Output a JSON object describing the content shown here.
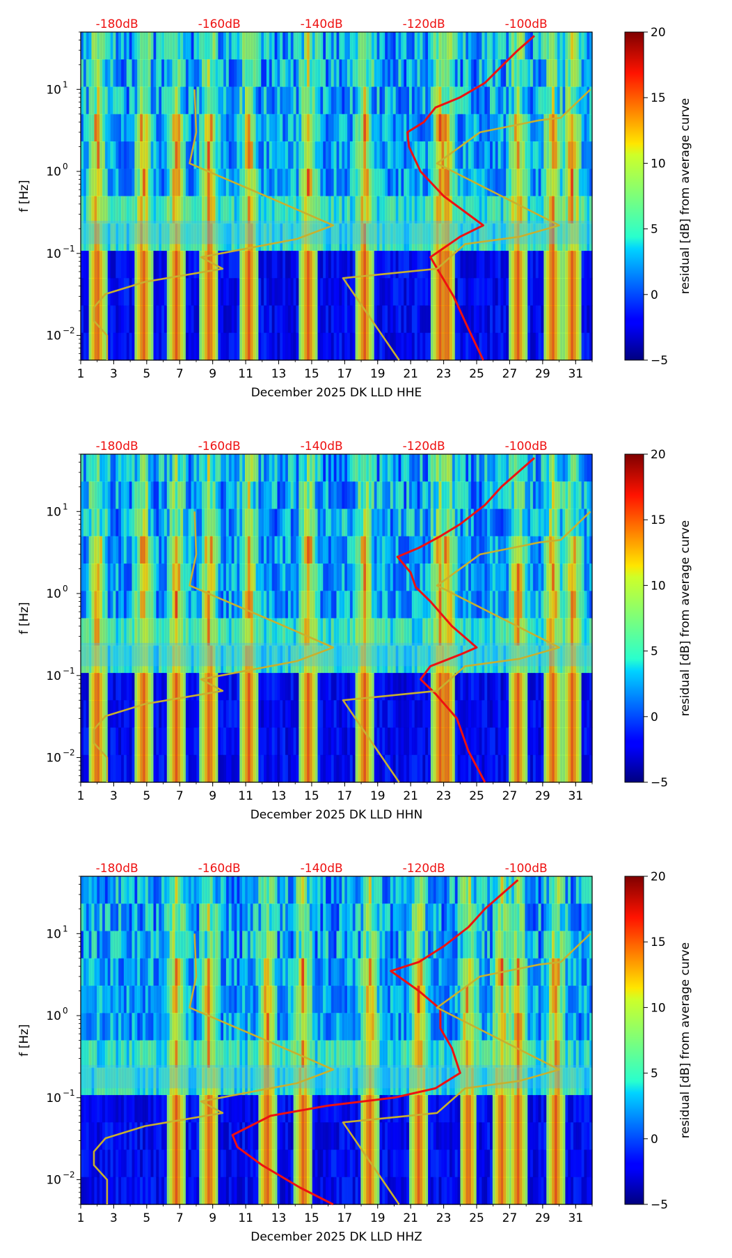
{
  "chart_data": [
    {
      "type": "heatmap",
      "xlabel": "December 2025 DK LLD  HHE",
      "ylabel": "f [Hz]",
      "xlim": [
        1,
        32
      ],
      "ylim": [
        0.005,
        50
      ],
      "yscale": "log",
      "x_ticks": [
        "1",
        "3",
        "5",
        "7",
        "9",
        "11",
        "13",
        "15",
        "17",
        "19",
        "21",
        "23",
        "25",
        "27",
        "29",
        "31"
      ],
      "y_ticks": [
        {
          "value": 0.01,
          "base": "10",
          "exp": "−2"
        },
        {
          "value": 0.1,
          "base": "10",
          "exp": "−1"
        },
        {
          "value": 1,
          "base": "10",
          "exp": "0"
        },
        {
          "value": 10,
          "base": "10",
          "exp": "1"
        }
      ],
      "top_db_labels": [
        "-180dB",
        "-160dB",
        "-140dB",
        "-120dB",
        "-100dB"
      ],
      "colorbar": {
        "label": "residual [dB] from average curve",
        "min": -5,
        "max": 20,
        "ticks": [
          "−5",
          "0",
          "5",
          "10",
          "15",
          "20"
        ]
      },
      "overlays": [
        {
          "name": "red-psd-curve",
          "color": "#ee1111",
          "points": [
            [
              25.4,
              0.005
            ],
            [
              24.5,
              0.012
            ],
            [
              23.6,
              0.03
            ],
            [
              22.2,
              0.09
            ],
            [
              24.0,
              0.16
            ],
            [
              25.4,
              0.22
            ],
            [
              23.0,
              0.5
            ],
            [
              21.6,
              1.0
            ],
            [
              20.9,
              2.0
            ],
            [
              20.8,
              3.0
            ],
            [
              21.8,
              4.0
            ],
            [
              22.5,
              6.0
            ],
            [
              24.0,
              8.0
            ],
            [
              25.5,
              12.0
            ],
            [
              26.6,
              20.0
            ],
            [
              27.5,
              30.0
            ],
            [
              28.5,
              45.0
            ]
          ]
        },
        {
          "name": "gold-noise-model-high",
          "color": "#c8b02e",
          "points": [
            [
              20.3,
              0.005
            ],
            [
              16.9,
              0.05
            ],
            [
              22.6,
              0.065
            ],
            [
              24.3,
              0.13
            ],
            [
              27.6,
              0.16
            ],
            [
              30.0,
              0.22
            ],
            [
              22.6,
              1.25
            ],
            [
              25.2,
              3.0
            ],
            [
              28.8,
              4.2
            ],
            [
              30.1,
              4.5
            ],
            [
              31.9,
              10.0
            ]
          ]
        },
        {
          "name": "gold-noise-model-low",
          "color": "#c8b02e",
          "points": [
            [
              2.6,
              0.005
            ],
            [
              2.6,
              0.01
            ],
            [
              1.8,
              0.015
            ],
            [
              1.8,
              0.022
            ],
            [
              2.5,
              0.032
            ],
            [
              4.9,
              0.045
            ],
            [
              9.6,
              0.065
            ],
            [
              8.3,
              0.09
            ],
            [
              14.1,
              0.15
            ],
            [
              16.3,
              0.22
            ],
            [
              13.1,
              0.42
            ],
            [
              7.6,
              1.25
            ],
            [
              8.0,
              3.0
            ],
            [
              7.9,
              10.0
            ]
          ]
        }
      ]
    },
    {
      "type": "heatmap",
      "xlabel": "December 2025 DK LLD  HHN",
      "ylabel": "f [Hz]",
      "xlim": [
        1,
        32
      ],
      "ylim": [
        0.005,
        50
      ],
      "yscale": "log",
      "x_ticks": [
        "1",
        "3",
        "5",
        "7",
        "9",
        "11",
        "13",
        "15",
        "17",
        "19",
        "21",
        "23",
        "25",
        "27",
        "29",
        "31"
      ],
      "y_ticks": [
        {
          "value": 0.01,
          "base": "10",
          "exp": "−2"
        },
        {
          "value": 0.1,
          "base": "10",
          "exp": "−1"
        },
        {
          "value": 1,
          "base": "10",
          "exp": "0"
        },
        {
          "value": 10,
          "base": "10",
          "exp": "1"
        }
      ],
      "top_db_labels": [
        "-180dB",
        "-160dB",
        "-140dB",
        "-120dB",
        "-100dB"
      ],
      "colorbar": {
        "label": "residual [dB] from average curve",
        "min": -5,
        "max": 20,
        "ticks": [
          "−5",
          "0",
          "5",
          "10",
          "15",
          "20"
        ]
      },
      "overlays": [
        {
          "name": "red-psd-curve",
          "color": "#ee1111",
          "points": [
            [
              25.5,
              0.005
            ],
            [
              24.5,
              0.012
            ],
            [
              23.8,
              0.03
            ],
            [
              22.5,
              0.06
            ],
            [
              21.6,
              0.09
            ],
            [
              22.2,
              0.13
            ],
            [
              24.0,
              0.18
            ],
            [
              25.0,
              0.22
            ],
            [
              23.5,
              0.4
            ],
            [
              22.2,
              0.8
            ],
            [
              21.3,
              1.2
            ],
            [
              21.0,
              1.8
            ],
            [
              20.2,
              2.8
            ],
            [
              21.5,
              3.6
            ],
            [
              22.8,
              5.0
            ],
            [
              24.0,
              7.0
            ],
            [
              25.5,
              12.0
            ],
            [
              26.5,
              20.0
            ],
            [
              27.5,
              30.0
            ],
            [
              28.5,
              45.0
            ]
          ]
        },
        {
          "name": "gold-noise-model-high",
          "color": "#c8b02e",
          "points": [
            [
              20.3,
              0.005
            ],
            [
              16.9,
              0.05
            ],
            [
              22.6,
              0.065
            ],
            [
              24.3,
              0.13
            ],
            [
              27.6,
              0.16
            ],
            [
              30.0,
              0.22
            ],
            [
              22.6,
              1.25
            ],
            [
              25.2,
              3.0
            ],
            [
              28.8,
              4.2
            ],
            [
              30.1,
              4.5
            ],
            [
              31.9,
              10.0
            ]
          ]
        },
        {
          "name": "gold-noise-model-low",
          "color": "#c8b02e",
          "points": [
            [
              2.6,
              0.005
            ],
            [
              2.6,
              0.01
            ],
            [
              1.8,
              0.015
            ],
            [
              1.8,
              0.022
            ],
            [
              2.5,
              0.032
            ],
            [
              4.9,
              0.045
            ],
            [
              9.6,
              0.065
            ],
            [
              8.3,
              0.09
            ],
            [
              14.1,
              0.15
            ],
            [
              16.3,
              0.22
            ],
            [
              13.1,
              0.42
            ],
            [
              7.6,
              1.25
            ],
            [
              8.0,
              3.0
            ],
            [
              7.9,
              10.0
            ]
          ]
        }
      ]
    },
    {
      "type": "heatmap",
      "xlabel": "December 2025 DK LLD  HHZ",
      "ylabel": "f [Hz]",
      "xlim": [
        1,
        32
      ],
      "ylim": [
        0.005,
        50
      ],
      "yscale": "log",
      "x_ticks": [
        "1",
        "3",
        "5",
        "7",
        "9",
        "11",
        "13",
        "15",
        "17",
        "19",
        "21",
        "23",
        "25",
        "27",
        "29",
        "31"
      ],
      "y_ticks": [
        {
          "value": 0.01,
          "base": "10",
          "exp": "−2"
        },
        {
          "value": 0.1,
          "base": "10",
          "exp": "−1"
        },
        {
          "value": 1,
          "base": "10",
          "exp": "0"
        },
        {
          "value": 10,
          "base": "10",
          "exp": "1"
        }
      ],
      "top_db_labels": [
        "-180dB",
        "-160dB",
        "-140dB",
        "-120dB",
        "-100dB"
      ],
      "colorbar": {
        "label": "residual [dB] from average curve",
        "min": -5,
        "max": 20,
        "ticks": [
          "−5",
          "0",
          "5",
          "10",
          "15",
          "20"
        ]
      },
      "overlays": [
        {
          "name": "red-psd-curve",
          "color": "#ee1111",
          "points": [
            [
              16.3,
              0.005
            ],
            [
              14.3,
              0.008
            ],
            [
              12.0,
              0.015
            ],
            [
              10.5,
              0.025
            ],
            [
              10.2,
              0.035
            ],
            [
              12.5,
              0.06
            ],
            [
              16.0,
              0.08
            ],
            [
              20.0,
              0.1
            ],
            [
              22.5,
              0.13
            ],
            [
              24.0,
              0.2
            ],
            [
              23.5,
              0.4
            ],
            [
              22.8,
              0.7
            ],
            [
              22.8,
              1.2
            ],
            [
              21.5,
              2.0
            ],
            [
              19.8,
              3.5
            ],
            [
              21.5,
              4.5
            ],
            [
              23.0,
              7.0
            ],
            [
              24.5,
              12.0
            ],
            [
              25.5,
              20.0
            ],
            [
              26.5,
              30.0
            ],
            [
              27.5,
              45.0
            ]
          ]
        },
        {
          "name": "gold-noise-model-high",
          "color": "#c8b02e",
          "points": [
            [
              20.3,
              0.005
            ],
            [
              16.9,
              0.05
            ],
            [
              22.6,
              0.065
            ],
            [
              24.3,
              0.13
            ],
            [
              27.6,
              0.16
            ],
            [
              30.0,
              0.22
            ],
            [
              22.6,
              1.25
            ],
            [
              25.2,
              3.0
            ],
            [
              28.8,
              4.2
            ],
            [
              30.1,
              4.5
            ],
            [
              31.9,
              10.0
            ]
          ]
        },
        {
          "name": "gold-noise-model-low",
          "color": "#c8b02e",
          "points": [
            [
              2.6,
              0.005
            ],
            [
              2.6,
              0.01
            ],
            [
              1.8,
              0.015
            ],
            [
              1.8,
              0.022
            ],
            [
              2.5,
              0.032
            ],
            [
              4.9,
              0.045
            ],
            [
              9.6,
              0.065
            ],
            [
              8.3,
              0.09
            ],
            [
              14.1,
              0.15
            ],
            [
              16.3,
              0.22
            ],
            [
              13.1,
              0.42
            ],
            [
              7.6,
              1.25
            ],
            [
              8.0,
              3.0
            ],
            [
              7.9,
              10.0
            ]
          ]
        }
      ]
    }
  ],
  "colors": {
    "overlay_red": "#ee1111",
    "overlay_gold": "#c8b02e",
    "db_label": "#ee1111"
  }
}
